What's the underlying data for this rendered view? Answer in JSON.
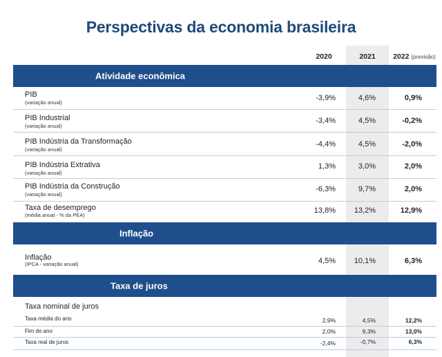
{
  "title": "Perspectivas da economia brasileira",
  "columns": {
    "y2020": "2020",
    "y2021": "2021",
    "y2022": "2022",
    "y2022_note": "(previsão)"
  },
  "sections": {
    "atividade": "Atividade econômica",
    "inflacao": "Inflação",
    "juros": "Taxa de juros"
  },
  "rows": [
    {
      "label": "PIB",
      "sub": "(variação anual)",
      "v2020": "-3,9%",
      "v2021": "4,6%",
      "v2022": "0,9%"
    },
    {
      "label": "PIB Industrial",
      "sub": "(variação anual)",
      "v2020": "-3,4%",
      "v2021": "4,5%",
      "v2022": "-0,2%"
    },
    {
      "label": "PIB Indústria da Transformação",
      "sub": "(variação anual)",
      "v2020": "-4,4%",
      "v2021": "4,5%",
      "v2022": "-2,0%"
    },
    {
      "label": "PIB Indústria Extrativa",
      "sub": "(variação anual)",
      "v2020": "1,3%",
      "v2021": "3,0%",
      "v2022": "2,0%"
    },
    {
      "label": "PIB Indústria da Construção",
      "sub": "(variação anual)",
      "v2020": "-6,3%",
      "v2021": "9,7%",
      "v2022": "2,0%"
    },
    {
      "label": "Taxa de desemprego",
      "sub": "(média anual - % da PEA)",
      "v2020": "13,8%",
      "v2021": "13,2%",
      "v2022": "12,9%"
    }
  ],
  "inflacao_row": {
    "label": "Inflação",
    "sub": "(IPCA - variação anual)",
    "v2020": "4,5%",
    "v2021": "10,1%",
    "v2022": "6,3%"
  },
  "juros": {
    "heading": "Taxa nominal de juros",
    "rows": [
      {
        "label": "Taxa média do ano",
        "v2020": "2,9%",
        "v2021": "4,5%",
        "v2022": "12,2%"
      },
      {
        "label": "Fim do ano",
        "v2020": "2,0%",
        "v2021": "9,3%",
        "v2022": "13,0%"
      },
      {
        "label": "Taxa real de juros",
        "v2020": "-2,4%",
        "v2021": "-0,7%",
        "v2022": "6,3%"
      }
    ]
  }
}
